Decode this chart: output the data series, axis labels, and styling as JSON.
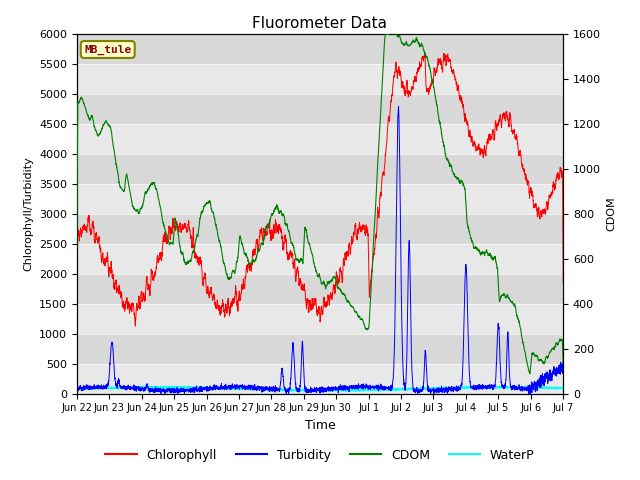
{
  "title": "Fluorometer Data",
  "xlabel": "Time",
  "ylabel_left": "Chlorophyll/Turbidity",
  "ylabel_right": "CDOM",
  "ylim_left": [
    0,
    6000
  ],
  "ylim_right": [
    0,
    1600
  ],
  "yticks_left": [
    0,
    500,
    1000,
    1500,
    2000,
    2500,
    3000,
    3500,
    4000,
    4500,
    5000,
    5500,
    6000
  ],
  "yticks_right": [
    0,
    200,
    400,
    600,
    800,
    1000,
    1200,
    1400,
    1600
  ],
  "station_label": "MB_tule",
  "legend_entries": [
    "Chlorophyll",
    "Turbidity",
    "CDOM",
    "WaterP"
  ],
  "legend_colors": [
    "red",
    "blue",
    "green",
    "cyan"
  ],
  "tick_labels": [
    "Jun 22",
    "Jun 23",
    "Jun 24",
    "Jun 25",
    "Jun 26",
    "Jun 27",
    "Jun 28",
    "Jun 29",
    "Jun 30",
    "Jul 1",
    "Jul 2",
    "Jul 3",
    "Jul 4",
    "Jul 5",
    "Jul 6",
    "Jul 7"
  ],
  "tick_positions": [
    0,
    24,
    48,
    72,
    96,
    120,
    144,
    168,
    192,
    216,
    240,
    264,
    288,
    312,
    336,
    360
  ],
  "band_colors": [
    "#e0e0e0",
    "#d0d0d0"
  ],
  "grid_color": "#f0f0f0",
  "fig_width": 6.4,
  "fig_height": 4.8,
  "dpi": 100
}
